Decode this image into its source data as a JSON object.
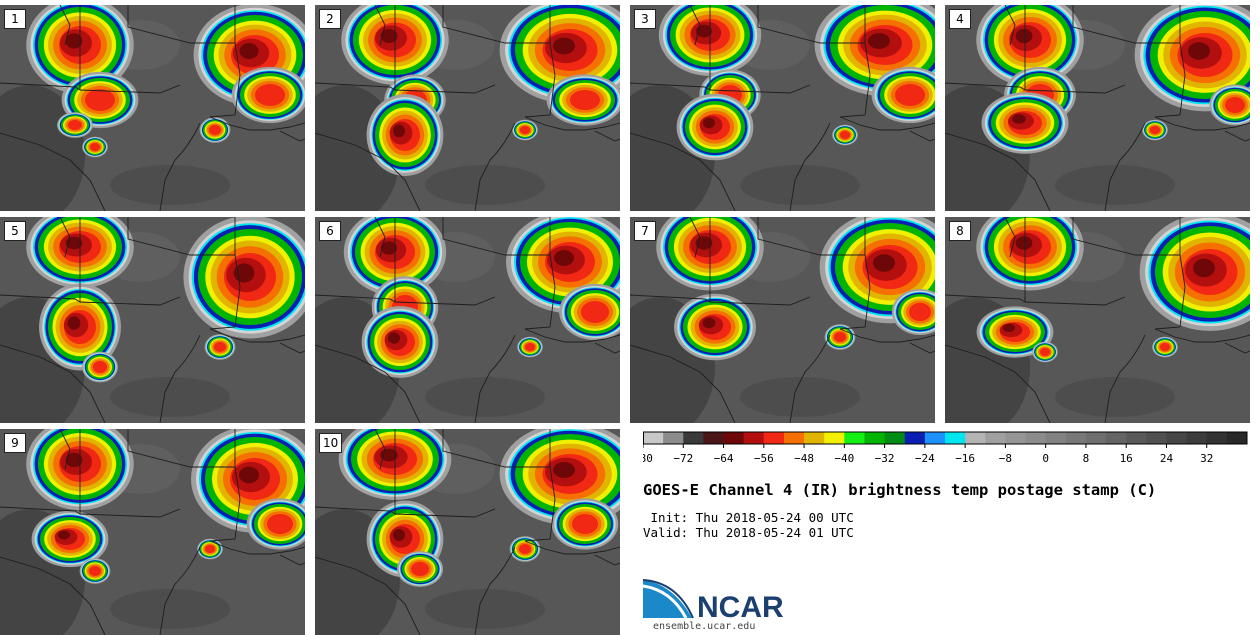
{
  "panels": [
    {
      "label": "1"
    },
    {
      "label": "2"
    },
    {
      "label": "3"
    },
    {
      "label": "4"
    },
    {
      "label": "5"
    },
    {
      "label": "6"
    },
    {
      "label": "7"
    },
    {
      "label": "8"
    },
    {
      "label": "9"
    },
    {
      "label": "10"
    }
  ],
  "colorbar": {
    "min": -80,
    "max": 40,
    "step": 4,
    "tick_labels": [
      "-80",
      "-72",
      "-64",
      "-56",
      "-48",
      "-40",
      "-32",
      "-24",
      "-16",
      "-8",
      "0",
      "8",
      "16",
      "24",
      "32"
    ],
    "colors": [
      "#c8c8c8",
      "#8c8c8c",
      "#3a3a3a",
      "#4a1616",
      "#6e0808",
      "#b40f0f",
      "#f02814",
      "#f57000",
      "#e1b400",
      "#f0f000",
      "#14f014",
      "#00b400",
      "#008c14",
      "#0a1eb4",
      "#1e90ff",
      "#00e6f0",
      "#b4b4b4",
      "#a0a0a0",
      "#969696",
      "#8c8c8c",
      "#828282",
      "#787878",
      "#6e6e6e",
      "#646464",
      "#5a5a5a",
      "#505050",
      "#464646",
      "#3c3c3c",
      "#323232",
      "#282828"
    ]
  },
  "title": "GOES-E Channel 4 (IR) brightness temp postage stamp (C)",
  "init": " Init: Thu 2018-05-24 00 UTC",
  "valid": "Valid: Thu 2018-05-24 01 UTC",
  "logo": {
    "text": "NCAR",
    "color": "#1b3f6e",
    "accent": "#1a88c9"
  },
  "site": "ensemble.ucar.edu"
}
